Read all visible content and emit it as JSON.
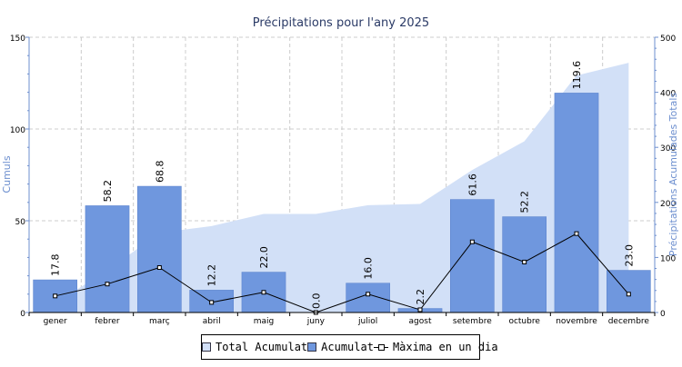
{
  "colors": {
    "bar": "#6f97de",
    "bar_stroke": "#5a82cc",
    "area": "#d2e0f7",
    "line": "#000000",
    "axis_left": "#6d8fcf",
    "axis_right": "#6d8fcf",
    "grid": "#cccccc",
    "title": "#2a3a66"
  },
  "chart_data": {
    "type": "bar",
    "title": "Précipitations pour l'any 2025",
    "ylabel": "Cumuls",
    "ylabel_right": "Précipitations Acumulades Totals",
    "categories": [
      "gener",
      "febrer",
      "març",
      "abril",
      "maig",
      "juny",
      "juliol",
      "agost",
      "setembre",
      "octubre",
      "novembre",
      "decembre"
    ],
    "ylim": [
      0,
      150
    ],
    "yticks": [
      "0",
      "50",
      "100",
      "150"
    ],
    "y2lim": [
      0,
      500
    ],
    "y2ticks": [
      "0",
      "100",
      "200",
      "300",
      "400",
      "500"
    ],
    "grid": true,
    "legend_position": "bottom",
    "series": [
      {
        "name": "Total Acumulat",
        "type": "area",
        "axis": "right",
        "values": [
          17.8,
          76.0,
          144.8,
          157.0,
          179.0,
          179.0,
          195.0,
          197.2,
          258.8,
          311.0,
          430.6,
          453.6
        ]
      },
      {
        "name": "Acumulat",
        "type": "bar",
        "axis": "left",
        "values": [
          17.8,
          58.2,
          68.8,
          12.2,
          22.0,
          0.0,
          16.0,
          2.2,
          61.6,
          52.2,
          119.6,
          23.0
        ],
        "data_labels": [
          "17.8",
          "58.2",
          "68.8",
          "12.2",
          "22.0",
          "0.0",
          "16.0",
          "2.2",
          "61.6",
          "52.2",
          "119.6",
          "23.0"
        ]
      },
      {
        "name": "Màxima en un dia",
        "type": "line",
        "axis": "left",
        "values": [
          9.0,
          15.5,
          24.5,
          5.5,
          11.0,
          0.0,
          10.0,
          1.5,
          38.5,
          27.5,
          43.0,
          10.0
        ]
      }
    ]
  },
  "legend": {
    "total_label": "Total Acumulat",
    "bar_label": "Acumulat",
    "line_label": "Màxima en un dia"
  }
}
